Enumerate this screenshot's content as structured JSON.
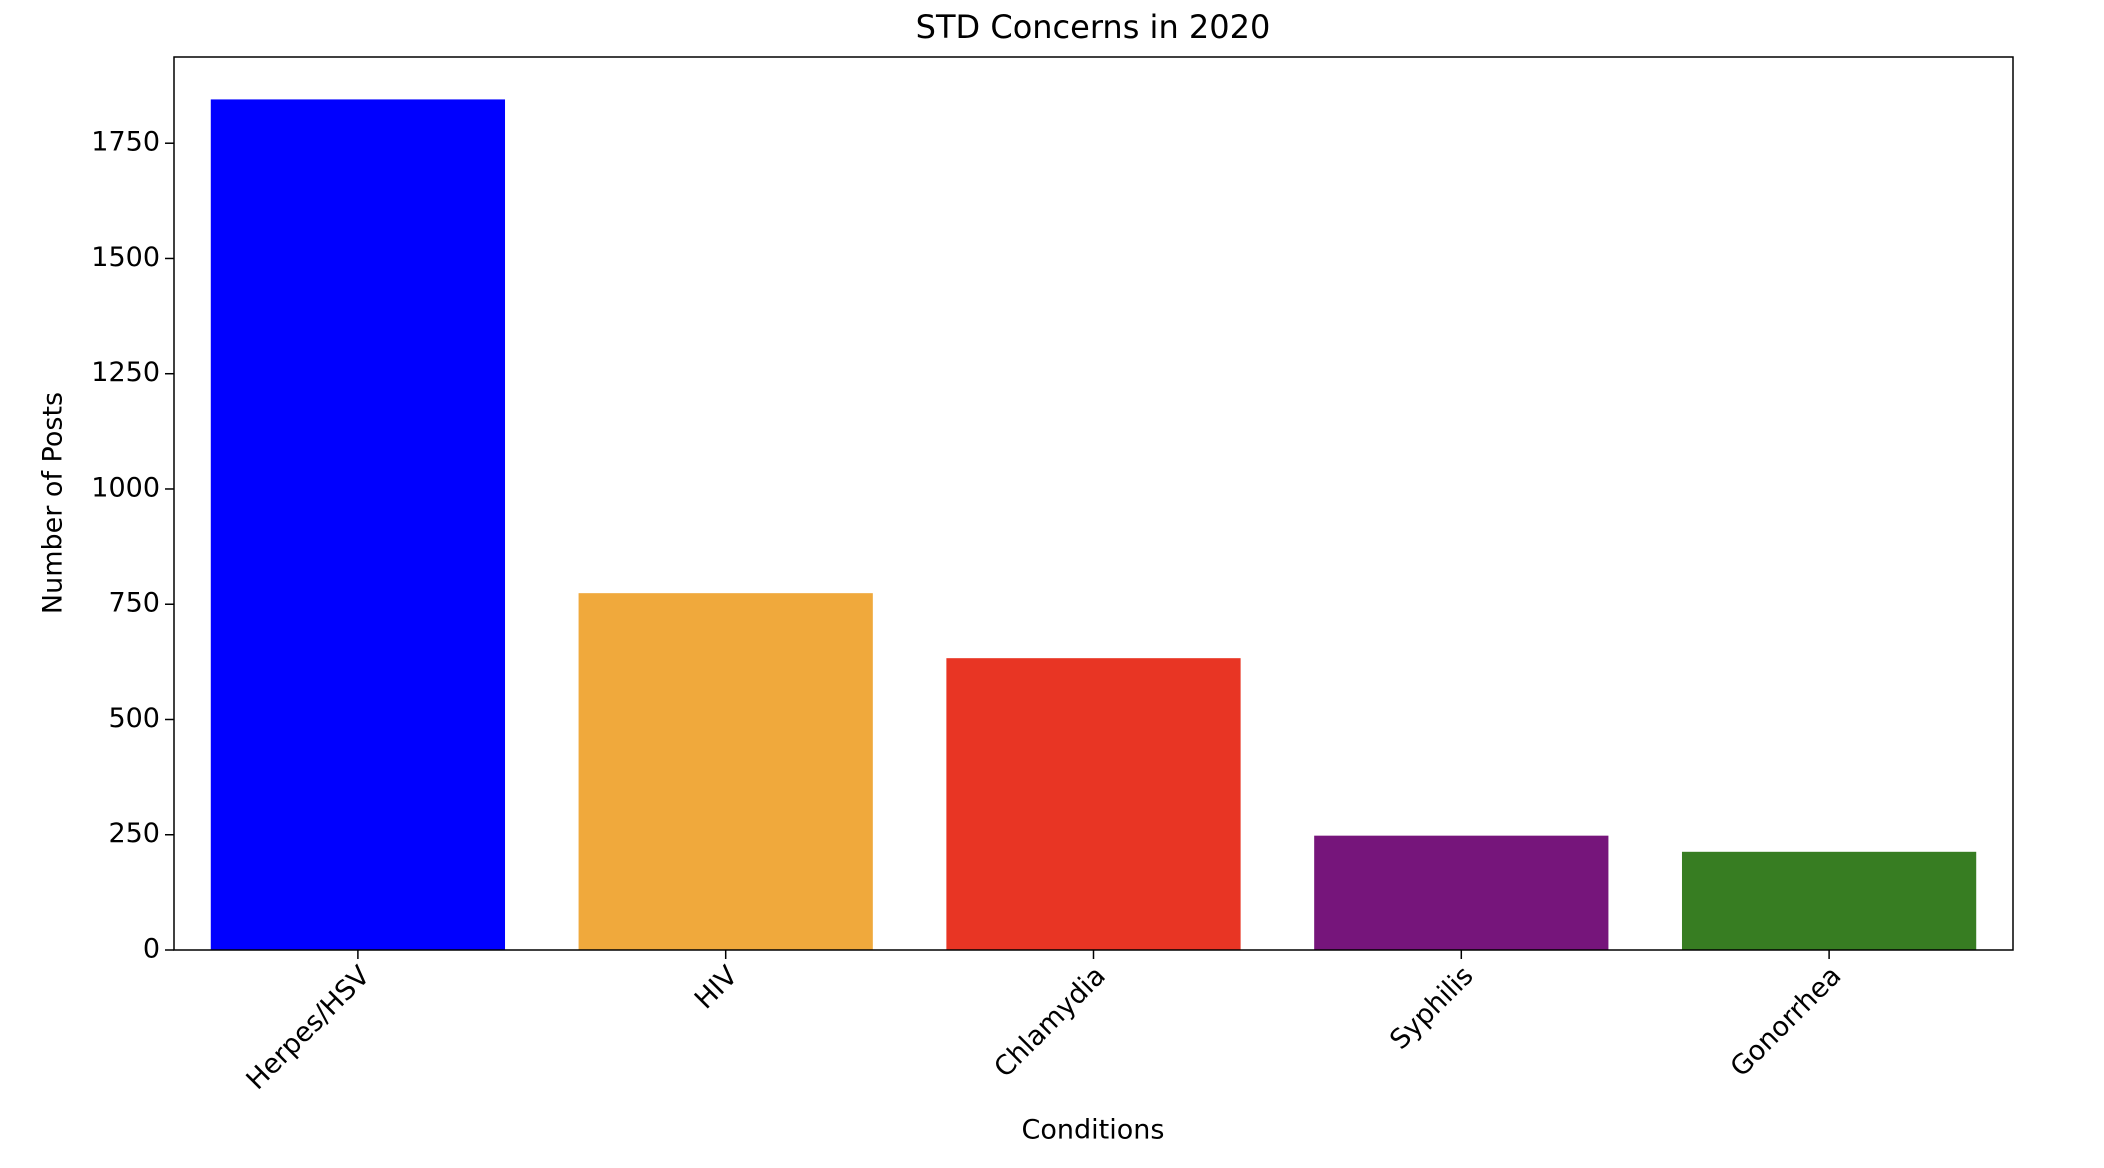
{
  "chart_data": {
    "type": "bar",
    "title": "STD Concerns in 2020",
    "x_label": "Conditions",
    "y_label": "Number of Posts",
    "categories": [
      "Herpes/HSV",
      "HIV",
      "Chlamydia",
      "Syphilis",
      "Gonorrhea"
    ],
    "values": [
      1845,
      774,
      633,
      248,
      213
    ],
    "colors": [
      "#0000ff",
      "#f0a93c",
      "#e83524",
      "#76157b",
      "#377d22"
    ],
    "ylim": [
      0,
      1937
    ],
    "yticks": [
      0,
      250,
      500,
      750,
      1000,
      1250,
      1500,
      1750
    ],
    "grid": false
  }
}
